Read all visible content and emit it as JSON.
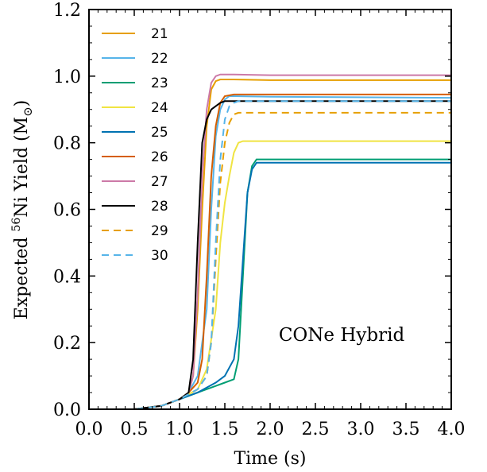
{
  "chart_data": {
    "type": "line",
    "title": "",
    "xlabel": "Time (s)",
    "ylabel_prefix": "Expected ",
    "ylabel_sup": "56",
    "ylabel_mid": "Ni Yield (M",
    "ylabel_sub": "⊙",
    "ylabel_suffix": ")",
    "xlim": [
      0,
      4
    ],
    "ylim": [
      0,
      1.2
    ],
    "xticks": [
      0,
      0.5,
      1,
      1.5,
      2,
      2.5,
      3,
      3.5,
      4
    ],
    "xtick_labels": [
      "0.0",
      "0.5",
      "1.0",
      "1.5",
      "2.0",
      "2.5",
      "3.0",
      "3.5",
      "4.0"
    ],
    "yticks": [
      0,
      0.2,
      0.4,
      0.6,
      0.8,
      1.0,
      1.2
    ],
    "ytick_labels": [
      "0.0",
      "0.2",
      "0.4",
      "0.6",
      "0.8",
      "1.0",
      "1.2"
    ],
    "grid": false,
    "legend_position": "top-left",
    "annotation": "CONe Hybrid",
    "series": [
      {
        "name": "21",
        "color": "#e69f00",
        "dash": "solid",
        "x": [
          0,
          0.5,
          0.8,
          1.0,
          1.1,
          1.15,
          1.2,
          1.25,
          1.3,
          1.35,
          1.4,
          1.45,
          1.6,
          2.0,
          4.0
        ],
        "y": [
          0,
          0,
          0.01,
          0.03,
          0.05,
          0.1,
          0.3,
          0.6,
          0.85,
          0.96,
          0.985,
          0.99,
          0.99,
          0.988,
          0.988
        ]
      },
      {
        "name": "22",
        "color": "#56b4e9",
        "dash": "solid",
        "x": [
          0,
          0.5,
          0.8,
          1.0,
          1.1,
          1.2,
          1.3,
          1.35,
          1.4,
          1.45,
          1.5,
          1.55,
          1.6,
          2.0,
          4.0
        ],
        "y": [
          0,
          0,
          0.01,
          0.03,
          0.05,
          0.1,
          0.3,
          0.6,
          0.82,
          0.9,
          0.93,
          0.94,
          0.94,
          0.938,
          0.935
        ]
      },
      {
        "name": "23",
        "color": "#009e73",
        "dash": "solid",
        "x": [
          0,
          0.5,
          0.8,
          1.0,
          1.2,
          1.4,
          1.5,
          1.6,
          1.65,
          1.7,
          1.75,
          1.8,
          1.85,
          2.0,
          4.0
        ],
        "y": [
          0,
          0,
          0.01,
          0.03,
          0.05,
          0.07,
          0.08,
          0.09,
          0.15,
          0.4,
          0.65,
          0.73,
          0.75,
          0.75,
          0.75
        ]
      },
      {
        "name": "24",
        "color": "#f0e442",
        "dash": "solid",
        "x": [
          0,
          0.5,
          0.8,
          1.0,
          1.2,
          1.3,
          1.4,
          1.45,
          1.5,
          1.55,
          1.6,
          1.65,
          1.7,
          2.0,
          4.0
        ],
        "y": [
          0,
          0,
          0.01,
          0.03,
          0.06,
          0.12,
          0.3,
          0.5,
          0.62,
          0.7,
          0.77,
          0.8,
          0.805,
          0.805,
          0.805
        ]
      },
      {
        "name": "25",
        "color": "#0072b2",
        "dash": "solid",
        "x": [
          0,
          0.5,
          0.8,
          1.0,
          1.2,
          1.4,
          1.5,
          1.6,
          1.65,
          1.7,
          1.75,
          1.8,
          1.85,
          2.0,
          4.0
        ],
        "y": [
          0,
          0,
          0.01,
          0.03,
          0.05,
          0.08,
          0.1,
          0.15,
          0.25,
          0.45,
          0.65,
          0.72,
          0.74,
          0.74,
          0.74
        ]
      },
      {
        "name": "26",
        "color": "#d55e00",
        "dash": "solid",
        "x": [
          0,
          0.5,
          0.8,
          1.0,
          1.1,
          1.2,
          1.25,
          1.3,
          1.35,
          1.4,
          1.45,
          1.5,
          1.6,
          2.0,
          4.0
        ],
        "y": [
          0,
          0,
          0.01,
          0.03,
          0.05,
          0.08,
          0.15,
          0.4,
          0.7,
          0.85,
          0.92,
          0.94,
          0.945,
          0.945,
          0.945
        ]
      },
      {
        "name": "27",
        "color": "#cc79a7",
        "dash": "solid",
        "x": [
          0,
          0.5,
          0.8,
          1.0,
          1.1,
          1.15,
          1.2,
          1.25,
          1.3,
          1.35,
          1.4,
          1.45,
          1.6,
          2.0,
          4.0
        ],
        "y": [
          0,
          0,
          0.01,
          0.03,
          0.05,
          0.1,
          0.35,
          0.7,
          0.9,
          0.98,
          1.0,
          1.005,
          1.005,
          1.003,
          1.003
        ]
      },
      {
        "name": "28",
        "color": "#000000",
        "dash": "solid",
        "x": [
          0,
          0.5,
          0.8,
          1.0,
          1.1,
          1.15,
          1.2,
          1.25,
          1.3,
          1.35,
          1.4,
          1.45,
          1.5,
          2.0,
          4.0
        ],
        "y": [
          0,
          0,
          0.01,
          0.03,
          0.05,
          0.15,
          0.5,
          0.8,
          0.87,
          0.9,
          0.91,
          0.92,
          0.925,
          0.925,
          0.925
        ]
      },
      {
        "name": "29",
        "color": "#e69f00",
        "dash": "dashed",
        "x": [
          0,
          0.5,
          0.8,
          1.0,
          1.2,
          1.3,
          1.35,
          1.4,
          1.45,
          1.5,
          1.55,
          1.6,
          1.65,
          2.0,
          4.0
        ],
        "y": [
          0,
          0,
          0.01,
          0.03,
          0.06,
          0.1,
          0.2,
          0.45,
          0.68,
          0.8,
          0.86,
          0.885,
          0.89,
          0.89,
          0.89
        ]
      },
      {
        "name": "30",
        "color": "#56b4e9",
        "dash": "dashed",
        "x": [
          0,
          0.5,
          0.8,
          1.0,
          1.2,
          1.3,
          1.35,
          1.4,
          1.45,
          1.5,
          1.55,
          1.6,
          1.65,
          2.0,
          4.0
        ],
        "y": [
          0,
          0,
          0.01,
          0.03,
          0.06,
          0.1,
          0.2,
          0.5,
          0.75,
          0.87,
          0.91,
          0.92,
          0.925,
          0.925,
          0.925
        ]
      }
    ]
  }
}
